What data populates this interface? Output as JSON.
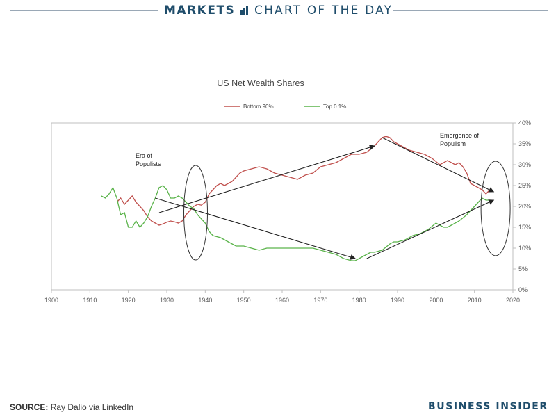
{
  "header": {
    "section": "MARKETS",
    "subtitle": "CHART OF THE DAY"
  },
  "footer": {
    "source_label": "SOURCE:",
    "source_text": "Ray Dalio via LinkedIn",
    "brand": "BUSINESS INSIDER"
  },
  "colors": {
    "bottom90": "#c0504d",
    "top01": "#5ab34a",
    "brand": "#1f4d6b"
  },
  "chart_data": {
    "type": "line",
    "title": "US Net Wealth Shares",
    "xlabel": "",
    "ylabel": "",
    "xlim": [
      1900,
      2020
    ],
    "ylim": [
      0,
      40
    ],
    "x_ticks": [
      "1900",
      "1910",
      "1920",
      "1930",
      "1940",
      "1950",
      "1960",
      "1970",
      "1980",
      "1990",
      "2000",
      "2010",
      "2020"
    ],
    "y_ticks": [
      "0%",
      "5%",
      "10%",
      "15%",
      "20%",
      "25%",
      "30%",
      "35%",
      "40%"
    ],
    "y_axis_side": "right",
    "grid": false,
    "legend_placement": "top-center",
    "series": [
      {
        "name": "Bottom 90%",
        "color": "#c0504d",
        "x": [
          1917,
          1918,
          1919,
          1920,
          1921,
          1922,
          1923,
          1924,
          1925,
          1926,
          1927,
          1928,
          1929,
          1930,
          1931,
          1932,
          1933,
          1934,
          1935,
          1936,
          1937,
          1938,
          1939,
          1940,
          1941,
          1942,
          1943,
          1944,
          1945,
          1946,
          1947,
          1948,
          1949,
          1950,
          1952,
          1954,
          1956,
          1958,
          1960,
          1962,
          1964,
          1966,
          1968,
          1970,
          1972,
          1974,
          1976,
          1978,
          1980,
          1982,
          1984,
          1985,
          1986,
          1987,
          1988,
          1989,
          1990,
          1991,
          1992,
          1993,
          1995,
          1997,
          1999,
          2001,
          2003,
          2005,
          2006,
          2007,
          2008,
          2009,
          2010,
          2011,
          2012,
          2013,
          2014
        ],
        "y": [
          21,
          22,
          20.5,
          21.5,
          22.5,
          21,
          20,
          19,
          17.5,
          16.5,
          16,
          15.5,
          15.8,
          16.2,
          16.5,
          16.3,
          16,
          16.5,
          18,
          19,
          20,
          20.5,
          20.3,
          21,
          23,
          24,
          25,
          25.5,
          25,
          25.5,
          26,
          27,
          28,
          28.5,
          29,
          29.5,
          29,
          28,
          27.5,
          27,
          26.5,
          27.5,
          28,
          29.5,
          30,
          30.5,
          31.5,
          32.5,
          32.5,
          33,
          34.5,
          35.5,
          36.5,
          36.8,
          36.5,
          35.5,
          35,
          34.5,
          34,
          33.5,
          33,
          32.5,
          31.5,
          30,
          31,
          30,
          30.5,
          29.5,
          28,
          25.5,
          25,
          24.5,
          24,
          23,
          24
        ]
      },
      {
        "name": "Top 0.1%",
        "color": "#5ab34a",
        "x": [
          1913,
          1914,
          1915,
          1916,
          1917,
          1918,
          1919,
          1920,
          1921,
          1922,
          1923,
          1924,
          1925,
          1926,
          1927,
          1928,
          1929,
          1930,
          1931,
          1932,
          1933,
          1934,
          1935,
          1936,
          1937,
          1938,
          1939,
          1940,
          1941,
          1942,
          1944,
          1946,
          1948,
          1950,
          1952,
          1954,
          1956,
          1958,
          1960,
          1962,
          1964,
          1966,
          1968,
          1970,
          1972,
          1974,
          1976,
          1978,
          1979,
          1980,
          1981,
          1982,
          1983,
          1984,
          1986,
          1988,
          1989,
          1990,
          1992,
          1994,
          1996,
          1998,
          2000,
          2002,
          2003,
          2004,
          2006,
          2008,
          2010,
          2011,
          2012,
          2013,
          2014
        ],
        "y": [
          22.5,
          22,
          23,
          24.5,
          22,
          18,
          18.5,
          15,
          15,
          16.5,
          15,
          16,
          17.5,
          20,
          22,
          24.5,
          25,
          24,
          22,
          22,
          22.5,
          22,
          21,
          20,
          19.5,
          18,
          17,
          16,
          14,
          13,
          12.5,
          11.5,
          10.5,
          10.5,
          10,
          9.5,
          10,
          10,
          10,
          10,
          10,
          10,
          10,
          9.5,
          9,
          8.5,
          7.5,
          7,
          7,
          7.5,
          8,
          8.5,
          9,
          9,
          9.5,
          11,
          11.5,
          11.5,
          12,
          13,
          13.5,
          14.5,
          16,
          15,
          15,
          15.5,
          16.5,
          18,
          20,
          21,
          22,
          21.5,
          21.5
        ]
      }
    ],
    "annotations": [
      {
        "text": "Era of",
        "text2": "Populists"
      },
      {
        "text": "Emergence of",
        "text2": "Populism"
      }
    ]
  }
}
